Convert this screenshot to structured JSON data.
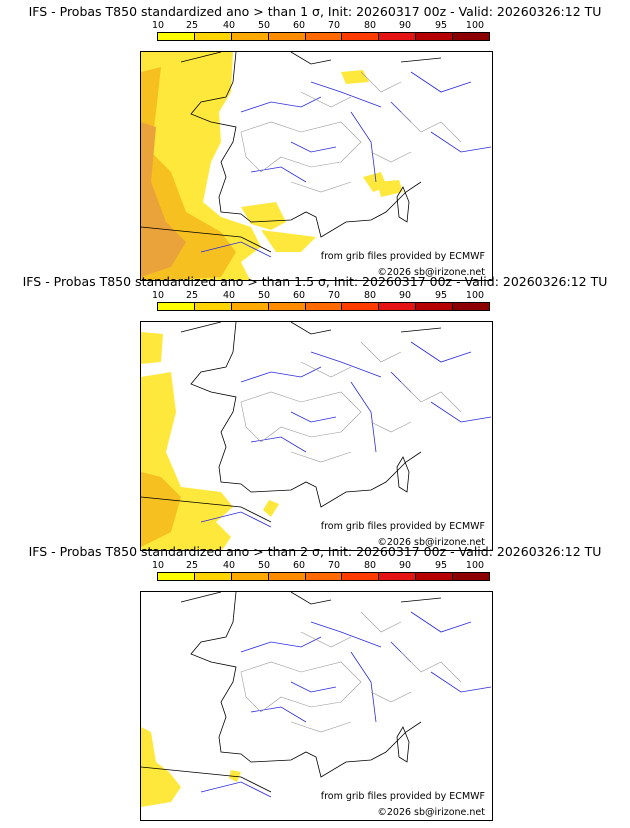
{
  "colors": {
    "scale": [
      "#ffff00",
      "#ffd400",
      "#ffaa00",
      "#ff8c00",
      "#ff6a00",
      "#ff3c00",
      "#e41414",
      "#b40000",
      "#8c0000",
      "#5a0000"
    ],
    "ocean": "#ffffff",
    "coast": "#000000",
    "rivers": "#2a2ae0",
    "borders": "#9a9a9a",
    "prob_light": "#ffe83c",
    "prob_mid": "#f5c020",
    "prob_high": "#eaa23a"
  },
  "scale_ticks": [
    "10",
    "25",
    "40",
    "50",
    "60",
    "70",
    "80",
    "90",
    "95",
    "100"
  ],
  "panels": [
    {
      "title": "IFS - Probas T850  standardized ano > than 1 σ, Init: 20260317 00z - Valid: 20260326:12 TU",
      "source_credit": "from grib files provided by ECMWF",
      "copyright": "©2026 sb@irizone.net"
    },
    {
      "title": "IFS - Probas T850  standardized ano > than 1.5 σ, Init: 20260317 00z - Valid: 20260326:12 TU",
      "source_credit": "from grib files provided by ECMWF",
      "copyright": "©2026 sb@irizone.net"
    },
    {
      "title": "IFS - Probas T850  standardized ano > than 2 σ, Init: 20260317 00z - Valid: 20260326:12 TU",
      "source_credit": "from grib files provided by ECMWF",
      "copyright": "©2026 sb@irizone.net"
    }
  ]
}
